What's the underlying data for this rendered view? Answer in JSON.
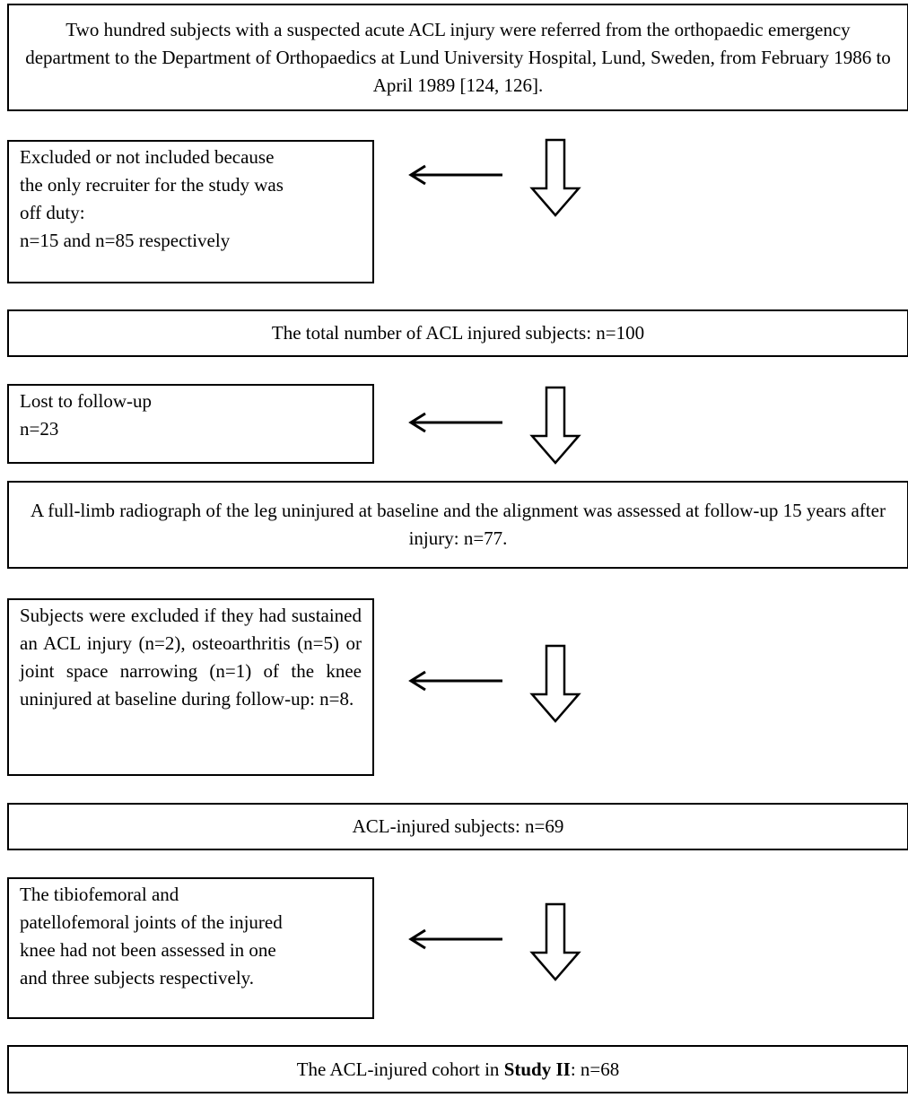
{
  "flow": {
    "box1": "Two hundred subjects with a suspected acute ACL injury were referred from the orthopaedic emergency department to the Department of Orthopaedics at Lund University Hospital, Lund, Sweden, from February 1986 to April 1989 [124, 126].",
    "excl1": [
      "Excluded or not included because",
      "the only recruiter for the study was",
      "off duty:",
      "n=15 and n=85 respectively"
    ],
    "box2": "The total number of ACL injured subjects: n=100",
    "excl2": [
      "Lost to follow-up",
      "n=23"
    ],
    "box3": "A full-limb radiograph of the leg uninjured at baseline and the alignment was assessed at follow-up 15 years after injury: n=77.",
    "excl3": "Subjects were excluded if they had sustained an ACL injury (n=2), osteoarthritis (n=5) or joint space narrowing (n=1) of the knee uninjured at baseline during follow-up: n=8.",
    "box4": "ACL-injured subjects: n=69",
    "excl4": [
      "The tibiofemoral and",
      "patellofemoral joints of the injured",
      "knee had not been assessed in one",
      "and three subjects respectively."
    ],
    "box5_prefix": "The ACL-injured cohort in ",
    "box5_bold": "Study II",
    "box5_suffix": ": n=68"
  }
}
